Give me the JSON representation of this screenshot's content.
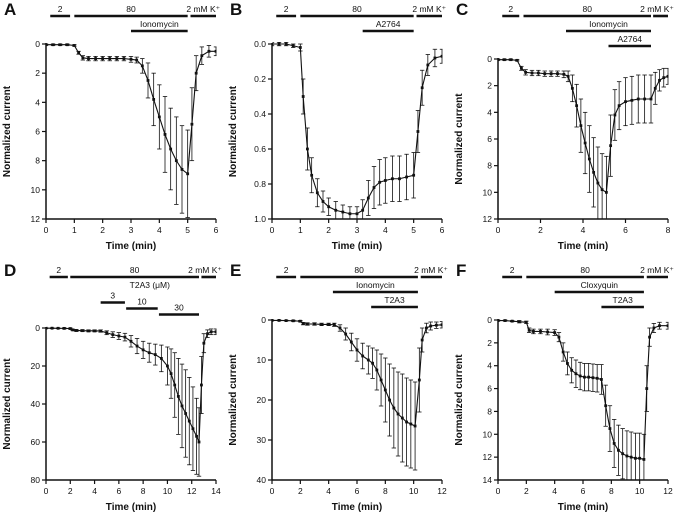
{
  "figure": {
    "background": "#ffffff",
    "ink": "#111111"
  },
  "chart_data": [
    {
      "panel": "A",
      "type": "line",
      "xlabel": "Time (min)",
      "ylabel": "Normalized current",
      "xlim": [
        0,
        6
      ],
      "ylim": [
        0,
        12
      ],
      "y_inverted_axis": true,
      "xticks": [
        0,
        1,
        2,
        3,
        4,
        5,
        6
      ],
      "xtick_labels": [
        "0",
        "1",
        "2",
        "3",
        "4",
        "5",
        "6"
      ],
      "yticks": [
        0,
        2,
        4,
        6,
        8,
        10,
        12
      ],
      "ytick_labels": [
        "0",
        "2",
        "4",
        "6",
        "8",
        "10",
        "12"
      ],
      "bars": [
        {
          "label": "2",
          "x0": 0.15,
          "x1": 0.85,
          "row": 0
        },
        {
          "label": "80",
          "x0": 1.0,
          "x1": 5.0,
          "row": 0
        },
        {
          "label": "2 mM K⁺",
          "x0": 5.1,
          "x1": 6.0,
          "row": 0
        },
        {
          "label": "Ionomycin",
          "x0": 3.0,
          "x1": 5.0,
          "row": 1
        }
      ],
      "x": [
        0,
        0.25,
        0.5,
        0.75,
        1.0,
        1.15,
        1.3,
        1.5,
        1.75,
        2.0,
        2.25,
        2.5,
        2.75,
        3.0,
        3.2,
        3.4,
        3.6,
        3.8,
        4.0,
        4.2,
        4.4,
        4.6,
        4.8,
        5.0,
        5.15,
        5.3,
        5.5,
        5.75,
        6.0
      ],
      "y": [
        0.05,
        0.05,
        0.05,
        0.05,
        0.1,
        0.6,
        0.95,
        1.0,
        1.0,
        1.0,
        1.0,
        1.0,
        1.0,
        1.05,
        1.1,
        1.5,
        2.5,
        3.8,
        5.0,
        6.2,
        7.2,
        8.0,
        8.6,
        8.9,
        5.5,
        2.0,
        0.8,
        0.5,
        0.5
      ],
      "yerr": [
        0.05,
        0.05,
        0.05,
        0.05,
        0.05,
        0.1,
        0.15,
        0.15,
        0.15,
        0.15,
        0.15,
        0.15,
        0.15,
        0.2,
        0.2,
        0.5,
        1.2,
        1.8,
        2.2,
        2.6,
        2.8,
        3.0,
        3.0,
        3.0,
        2.5,
        1.2,
        0.6,
        0.4,
        0.3
      ]
    },
    {
      "panel": "B",
      "type": "line",
      "xlabel": "Time (min)",
      "ylabel": "Normalized current",
      "xlim": [
        0,
        6
      ],
      "ylim": [
        0,
        1.0
      ],
      "y_inverted_axis": true,
      "xticks": [
        0,
        1,
        2,
        3,
        4,
        5,
        6
      ],
      "xtick_labels": [
        "0",
        "1",
        "2",
        "3",
        "4",
        "5",
        "6"
      ],
      "yticks": [
        0,
        0.2,
        0.4,
        0.6,
        0.8,
        1.0
      ],
      "ytick_labels": [
        "0.0",
        "0.2",
        "0.4",
        "0.6",
        "0.8",
        "1.0"
      ],
      "bars": [
        {
          "label": "2",
          "x0": 0.15,
          "x1": 0.85,
          "row": 0
        },
        {
          "label": "80",
          "x0": 1.0,
          "x1": 5.0,
          "row": 0
        },
        {
          "label": "2 mM K⁺",
          "x0": 5.1,
          "x1": 6.0,
          "row": 0
        },
        {
          "label": "A2764",
          "x0": 3.2,
          "x1": 5.0,
          "row": 1
        }
      ],
      "x": [
        0,
        0.25,
        0.5,
        0.75,
        1.0,
        1.1,
        1.25,
        1.4,
        1.6,
        1.8,
        2.0,
        2.25,
        2.5,
        2.75,
        3.0,
        3.2,
        3.4,
        3.6,
        3.8,
        4.0,
        4.25,
        4.5,
        4.75,
        5.0,
        5.15,
        5.3,
        5.5,
        5.75,
        6.0
      ],
      "y": [
        0,
        0,
        0,
        0.01,
        0.02,
        0.3,
        0.6,
        0.75,
        0.85,
        0.9,
        0.93,
        0.95,
        0.96,
        0.97,
        0.97,
        0.95,
        0.88,
        0.82,
        0.79,
        0.78,
        0.77,
        0.77,
        0.76,
        0.75,
        0.5,
        0.25,
        0.12,
        0.08,
        0.07
      ],
      "yerr": [
        0.01,
        0.01,
        0.01,
        0.01,
        0.02,
        0.1,
        0.12,
        0.1,
        0.08,
        0.06,
        0.05,
        0.05,
        0.04,
        0.04,
        0.04,
        0.06,
        0.1,
        0.12,
        0.13,
        0.13,
        0.13,
        0.13,
        0.13,
        0.13,
        0.12,
        0.1,
        0.06,
        0.05,
        0.04
      ]
    },
    {
      "panel": "C",
      "type": "line",
      "xlabel": "Time (min)",
      "ylabel": "Normalized current",
      "xlim": [
        0,
        8
      ],
      "ylim": [
        0,
        12
      ],
      "y_inverted_axis": true,
      "xticks": [
        0,
        2,
        4,
        6,
        8
      ],
      "xtick_labels": [
        "0",
        "2",
        "4",
        "6",
        "8"
      ],
      "yticks": [
        0,
        2,
        4,
        6,
        8,
        10,
        12
      ],
      "ytick_labels": [
        "0",
        "2",
        "4",
        "6",
        "8",
        "10",
        "12"
      ],
      "bars": [
        {
          "label": "2",
          "x0": 0.2,
          "x1": 1.0,
          "row": 0
        },
        {
          "label": "80",
          "x0": 1.2,
          "x1": 7.2,
          "row": 0
        },
        {
          "label": "2 mM K⁺",
          "x0": 7.3,
          "x1": 8.0,
          "row": 0
        },
        {
          "label": "Ionomycin",
          "x0": 3.2,
          "x1": 7.2,
          "row": 1
        },
        {
          "label": "A2764",
          "x0": 5.2,
          "x1": 7.2,
          "row": 2
        }
      ],
      "x": [
        0,
        0.3,
        0.6,
        0.9,
        1.1,
        1.3,
        1.6,
        1.9,
        2.2,
        2.5,
        2.8,
        3.1,
        3.3,
        3.5,
        3.7,
        3.9,
        4.1,
        4.3,
        4.5,
        4.7,
        4.9,
        5.1,
        5.3,
        5.5,
        5.7,
        6.0,
        6.3,
        6.6,
        6.9,
        7.2,
        7.4,
        7.6,
        7.8,
        8.0
      ],
      "y": [
        0.05,
        0.05,
        0.05,
        0.1,
        0.7,
        1.0,
        1.05,
        1.05,
        1.1,
        1.1,
        1.1,
        1.15,
        1.3,
        2.2,
        3.5,
        5.0,
        6.3,
        7.5,
        8.5,
        9.3,
        9.8,
        10.0,
        6.5,
        4.2,
        3.5,
        3.2,
        3.1,
        3.0,
        3.0,
        3.0,
        2.2,
        1.6,
        1.4,
        1.3
      ],
      "yerr": [
        0.05,
        0.05,
        0.05,
        0.05,
        0.15,
        0.2,
        0.2,
        0.2,
        0.2,
        0.2,
        0.2,
        0.25,
        0.4,
        1.0,
        1.6,
        2.0,
        2.3,
        2.5,
        2.6,
        2.7,
        2.7,
        2.7,
        2.3,
        1.9,
        1.8,
        1.8,
        1.8,
        1.8,
        1.8,
        1.8,
        1.2,
        0.8,
        0.7,
        0.6
      ]
    },
    {
      "panel": "D",
      "type": "line",
      "xlabel": "Time (min)",
      "ylabel": "Normalized current",
      "xlim": [
        0,
        14
      ],
      "ylim": [
        0,
        80
      ],
      "y_inverted_axis": true,
      "xticks": [
        0,
        2,
        4,
        6,
        8,
        10,
        12,
        14
      ],
      "xtick_labels": [
        "0",
        "2",
        "4",
        "6",
        "8",
        "10",
        "12",
        "14"
      ],
      "yticks": [
        0,
        20,
        40,
        60,
        80
      ],
      "ytick_labels": [
        "0",
        "20",
        "40",
        "60",
        "80"
      ],
      "bars": [
        {
          "label": "2",
          "x0": 0.3,
          "x1": 1.8,
          "row": 0
        },
        {
          "label": "80",
          "x0": 2.0,
          "x1": 12.6,
          "row": 0
        },
        {
          "label": "2 mM K⁺",
          "x0": 12.8,
          "x1": 14.0,
          "row": 0
        },
        {
          "label": "T2A3 (μM)",
          "x0": 4.5,
          "x1": 12.6,
          "row": 1,
          "label_only": true
        },
        {
          "label": "3",
          "x0": 4.5,
          "x1": 6.5,
          "row": 1.7
        },
        {
          "label": "10",
          "x0": 6.6,
          "x1": 9.2,
          "row": 2.1
        },
        {
          "label": "30",
          "x0": 9.3,
          "x1": 12.6,
          "row": 2.5
        }
      ],
      "x": [
        0,
        0.5,
        1.0,
        1.5,
        2.0,
        2.2,
        2.5,
        3.0,
        3.5,
        4.0,
        4.5,
        5.0,
        5.5,
        6.0,
        6.5,
        7.0,
        7.5,
        8.0,
        8.5,
        9.0,
        9.5,
        10.0,
        10.3,
        10.6,
        10.9,
        11.2,
        11.5,
        11.8,
        12.1,
        12.4,
        12.6,
        12.8,
        13.0,
        13.3,
        13.6,
        14.0
      ],
      "y": [
        0.1,
        0.1,
        0.15,
        0.2,
        0.3,
        1.0,
        1.3,
        1.4,
        1.5,
        1.5,
        1.6,
        2.5,
        3.5,
        4.2,
        4.8,
        7.0,
        9.5,
        11.5,
        13.0,
        14.0,
        16,
        20,
        24,
        30,
        36,
        41,
        45,
        49,
        53,
        57,
        60,
        30,
        8,
        3,
        2,
        2
      ],
      "yerr": [
        0.2,
        0.2,
        0.2,
        0.3,
        0.3,
        0.4,
        0.5,
        0.5,
        0.5,
        0.5,
        0.6,
        1.0,
        1.5,
        1.8,
        2.0,
        3.0,
        4.0,
        4.5,
        5.0,
        5.5,
        7,
        10,
        13,
        17,
        20,
        22,
        23,
        23,
        22,
        20,
        18,
        15,
        5,
        2,
        1.5,
        1.5
      ]
    },
    {
      "panel": "E",
      "type": "line",
      "xlabel": "Time (min)",
      "ylabel": "Normalized current",
      "xlim": [
        0,
        12
      ],
      "ylim": [
        0,
        40
      ],
      "y_inverted_axis": true,
      "xticks": [
        0,
        2,
        4,
        6,
        8,
        10,
        12
      ],
      "xtick_labels": [
        "0",
        "2",
        "4",
        "6",
        "8",
        "10",
        "12"
      ],
      "yticks": [
        0,
        10,
        20,
        30,
        40
      ],
      "ytick_labels": [
        "0",
        "10",
        "20",
        "30",
        "40"
      ],
      "bars": [
        {
          "label": "2",
          "x0": 0.3,
          "x1": 1.7,
          "row": 0
        },
        {
          "label": "80",
          "x0": 2.0,
          "x1": 10.3,
          "row": 0
        },
        {
          "label": "2 mM K⁺",
          "x0": 10.5,
          "x1": 12.0,
          "row": 0
        },
        {
          "label": "Ionomycin",
          "x0": 4.3,
          "x1": 10.3,
          "row": 1
        },
        {
          "label": "T2A3",
          "x0": 7.0,
          "x1": 10.3,
          "row": 2
        }
      ],
      "x": [
        0,
        0.5,
        1.0,
        1.5,
        2.0,
        2.2,
        2.5,
        3.0,
        3.5,
        4.0,
        4.4,
        4.8,
        5.2,
        5.6,
        6.0,
        6.4,
        6.8,
        7.1,
        7.4,
        7.7,
        8.0,
        8.3,
        8.6,
        8.9,
        9.2,
        9.5,
        9.8,
        10.1,
        10.4,
        10.6,
        10.9,
        11.2,
        11.6,
        12.0
      ],
      "y": [
        0.1,
        0.1,
        0.15,
        0.2,
        0.3,
        0.9,
        1.0,
        1.0,
        1.1,
        1.1,
        1.2,
        2.0,
        3.5,
        5.5,
        7.5,
        9.0,
        10.0,
        10.8,
        12.5,
        15.0,
        17.5,
        20.0,
        22.0,
        23.5,
        24.5,
        25.5,
        26.0,
        26.5,
        15.0,
        5.0,
        2.0,
        1.5,
        1.3,
        1.2
      ],
      "yerr": [
        0.1,
        0.1,
        0.1,
        0.15,
        0.2,
        0.3,
        0.3,
        0.3,
        0.3,
        0.3,
        0.4,
        0.8,
        1.5,
        2.2,
        2.8,
        3.2,
        3.5,
        3.8,
        5.0,
        6.5,
        8.0,
        9.0,
        10.0,
        10.5,
        11.0,
        11.0,
        11.0,
        11.0,
        8.0,
        3.0,
        1.2,
        1.0,
        0.8,
        0.8
      ]
    },
    {
      "panel": "F",
      "type": "line",
      "xlabel": "Time (min)",
      "ylabel": "Normalized current",
      "xlim": [
        0,
        12
      ],
      "ylim": [
        0,
        14
      ],
      "y_inverted_axis": true,
      "xticks": [
        0,
        2,
        4,
        6,
        8,
        10,
        12
      ],
      "xtick_labels": [
        "0",
        "2",
        "4",
        "6",
        "8",
        "10",
        "12"
      ],
      "yticks": [
        0,
        2,
        4,
        6,
        8,
        10,
        12,
        14
      ],
      "ytick_labels": [
        "0",
        "2",
        "4",
        "6",
        "8",
        "10",
        "12",
        "14"
      ],
      "bars": [
        {
          "label": "2",
          "x0": 0.3,
          "x1": 1.7,
          "row": 0
        },
        {
          "label": "80",
          "x0": 2.0,
          "x1": 10.3,
          "row": 0
        },
        {
          "label": "2 mM K⁺",
          "x0": 10.5,
          "x1": 12.0,
          "row": 0
        },
        {
          "label": "Cloxyquin",
          "x0": 4.0,
          "x1": 10.3,
          "row": 1
        },
        {
          "label": "T2A3",
          "x0": 7.3,
          "x1": 10.3,
          "row": 2
        }
      ],
      "x": [
        0,
        0.5,
        1.0,
        1.5,
        2.0,
        2.2,
        2.5,
        3.0,
        3.5,
        4.0,
        4.3,
        4.6,
        4.9,
        5.2,
        5.5,
        5.8,
        6.1,
        6.4,
        6.7,
        7.0,
        7.3,
        7.6,
        7.9,
        8.2,
        8.5,
        8.8,
        9.1,
        9.4,
        9.7,
        10.0,
        10.3,
        10.5,
        10.7,
        11.0,
        11.4,
        12.0
      ],
      "y": [
        0.05,
        0.05,
        0.1,
        0.15,
        0.2,
        0.9,
        1.0,
        1.0,
        1.05,
        1.1,
        1.5,
        2.8,
        3.8,
        4.4,
        4.7,
        4.9,
        5.0,
        5.0,
        5.05,
        5.1,
        5.2,
        7.5,
        9.5,
        10.8,
        11.4,
        11.7,
        11.9,
        12.0,
        12.1,
        12.1,
        12.2,
        6.0,
        1.5,
        0.7,
        0.5,
        0.5
      ],
      "yerr": [
        0.05,
        0.05,
        0.05,
        0.1,
        0.1,
        0.2,
        0.2,
        0.2,
        0.25,
        0.25,
        0.4,
        0.8,
        1.0,
        1.1,
        1.2,
        1.2,
        1.2,
        1.2,
        1.2,
        1.2,
        1.3,
        1.8,
        2.0,
        2.1,
        2.2,
        2.2,
        2.2,
        2.2,
        2.2,
        2.2,
        2.2,
        2.0,
        0.8,
        0.4,
        0.3,
        0.3
      ]
    }
  ]
}
